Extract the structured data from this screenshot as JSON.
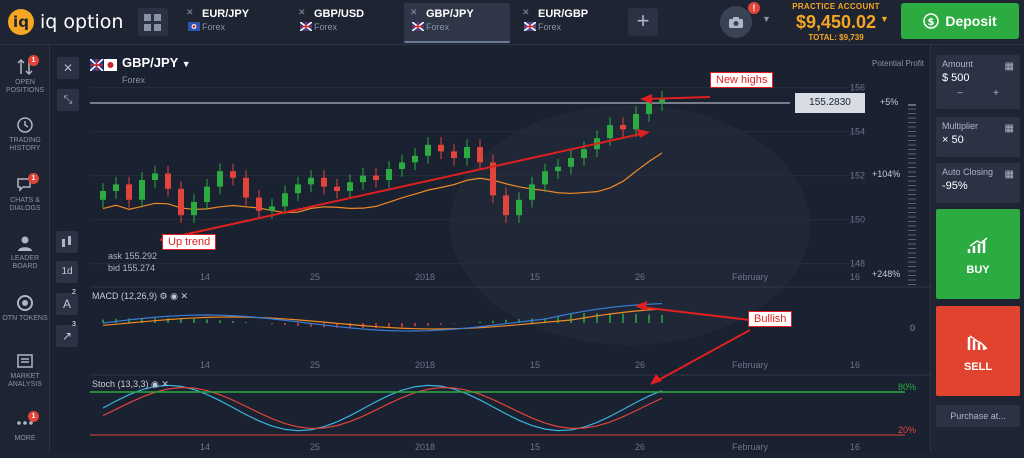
{
  "brand": {
    "logo_mark": "iq",
    "name": "iq option"
  },
  "tabs": [
    {
      "name": "EUR/JPY",
      "sub": "Forex"
    },
    {
      "name": "GBP/USD",
      "sub": "Forex"
    },
    {
      "name": "GBP/JPY",
      "sub": "Forex"
    },
    {
      "name": "EUR/GBP",
      "sub": "Forex"
    }
  ],
  "account": {
    "label": "PRACTICE ACCOUNT",
    "balance": "$9,450.02",
    "total": "TOTAL: $9,739",
    "notification_count": "!"
  },
  "deposit_label": "Deposit",
  "sidebar": [
    {
      "label": "OPEN POSITIONS",
      "badge": "1"
    },
    {
      "label": "TRADING HISTORY",
      "badge": ""
    },
    {
      "label": "CHATS & DIALOGS",
      "badge": "1"
    },
    {
      "label": "LEADER BOARD",
      "badge": ""
    },
    {
      "label": "OTN TOKENS",
      "badge": ""
    },
    {
      "label": "MARKET ANALYSIS",
      "badge": ""
    },
    {
      "label": "MORE",
      "badge": "1"
    }
  ],
  "asset": {
    "name": "GBP/JPY",
    "type": "Forex",
    "ask": "ask 155.292",
    "bid": "bid 155.274"
  },
  "price_tag": "155.2830",
  "potential_profit": "Potential Profit",
  "profit_levels": [
    "+5%",
    "+104%",
    "+248%"
  ],
  "y_ticks": [
    "156",
    "154",
    "152",
    "150",
    "148"
  ],
  "x_ticks": [
    "14",
    "25",
    "2018",
    "15",
    "26",
    "February",
    "16"
  ],
  "timeframe": "1d",
  "indicators": {
    "macd_label": "MACD (12,26,9)",
    "macd_zero": "0",
    "stoch_label": "Stoch (13,3,3)",
    "stoch_upper": "80%",
    "stoch_lower": "20%",
    "tool_badges": [
      "2",
      "3"
    ]
  },
  "annotations": {
    "new_highs": "New highs",
    "up_trend": "Up trend",
    "bullish": "Bullish"
  },
  "right_panel": {
    "amount_label": "Amount",
    "amount_value": "$ 500",
    "multiplier_label": "Multiplier",
    "multiplier_value": "× 50",
    "auto_closing_label": "Auto Closing",
    "auto_closing_value": "-95%",
    "buy_label": "BUY",
    "sell_label": "SELL",
    "purchase_label": "Purchase at..."
  },
  "colors": {
    "up": "#2bab40",
    "down": "#e0443a",
    "accent": "#f5a623",
    "macd": "#3a7bd5",
    "signal": "#f08a24"
  },
  "chart_data": {
    "type": "candlestick",
    "candles_close": [
      151.3,
      151.6,
      150.9,
      151.8,
      152.1,
      151.4,
      150.2,
      150.8,
      151.5,
      152.2,
      151.9,
      151.0,
      150.4,
      150.6,
      151.2,
      151.6,
      151.9,
      151.5,
      151.3,
      151.7,
      152.0,
      151.8,
      152.3,
      152.6,
      152.9,
      153.4,
      153.1,
      152.8,
      153.3,
      152.6,
      151.1,
      150.2,
      150.9,
      151.6,
      152.2,
      152.4,
      152.8,
      153.2,
      153.7,
      154.3,
      154.1,
      154.8,
      155.3,
      155.5
    ]
  }
}
